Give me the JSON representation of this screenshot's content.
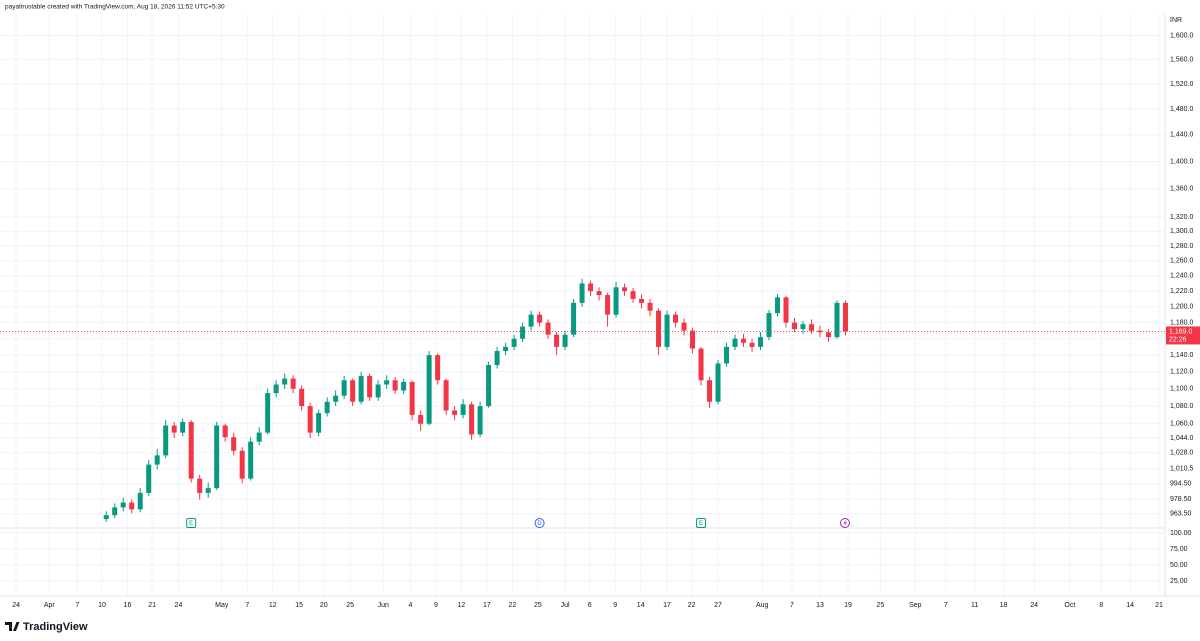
{
  "header": "payaltrustable created with TradingView.com, Aug 18, 2026 11:52 UTC+5:30",
  "logo": "TradingView",
  "chart_data": [
    {
      "type": "candlestick",
      "currency": "INR",
      "log": true,
      "grid": true,
      "up_color": "#089981",
      "down_color": "#f23645",
      "ylim": [
        949,
        1637
      ],
      "xlim": [
        -12.5,
        124.6
      ],
      "yticks": [
        {
          "value": 1600,
          "label": "1,600.0"
        },
        {
          "value": 1560,
          "label": "1,560.0"
        },
        {
          "value": 1520,
          "label": "1,520.0"
        },
        {
          "value": 1480,
          "label": "1,480.0"
        },
        {
          "value": 1440,
          "label": "1,440.0"
        },
        {
          "value": 1400,
          "label": "1,400.0"
        },
        {
          "value": 1360,
          "label": "1,360.0"
        },
        {
          "value": 1320,
          "label": "1,320.0"
        },
        {
          "value": 1300,
          "label": "1,300.0"
        },
        {
          "value": 1280,
          "label": "1,280.0"
        },
        {
          "value": 1260,
          "label": "1,260.0"
        },
        {
          "value": 1240,
          "label": "1,240.0"
        },
        {
          "value": 1220,
          "label": "1,220.0"
        },
        {
          "value": 1200,
          "label": "1,200.0"
        },
        {
          "value": 1180,
          "label": "1,180.0"
        },
        {
          "value": 1160,
          "label": "1,160.0"
        },
        {
          "value": 1140,
          "label": "1,140.0"
        },
        {
          "value": 1120,
          "label": "1,120.0"
        },
        {
          "value": 1100,
          "label": "1,100.0"
        },
        {
          "value": 1080,
          "label": "1,080.0"
        },
        {
          "value": 1060,
          "label": "1,060.0"
        },
        {
          "value": 1044,
          "label": "1,044.0"
        },
        {
          "value": 1028,
          "label": "1,028.0"
        },
        {
          "value": 1010.5,
          "label": "1,010.5"
        },
        {
          "value": 994.5,
          "label": "994.50"
        },
        {
          "value": 978.5,
          "label": "978.50"
        },
        {
          "value": 963.5,
          "label": "963.50"
        }
      ],
      "xticks": [
        {
          "value": -10.6,
          "label": "24"
        },
        {
          "value": -6.7,
          "label": "Apr"
        },
        {
          "value": -3.4,
          "label": "7"
        },
        {
          "value": -0.5,
          "label": "10"
        },
        {
          "value": 2.5,
          "label": "16"
        },
        {
          "value": 5.4,
          "label": "21"
        },
        {
          "value": 8.5,
          "label": "24"
        },
        {
          "value": 13.6,
          "label": "May"
        },
        {
          "value": 16.6,
          "label": "7"
        },
        {
          "value": 19.6,
          "label": "12"
        },
        {
          "value": 22.7,
          "label": "15"
        },
        {
          "value": 25.6,
          "label": "20"
        },
        {
          "value": 28.7,
          "label": "25"
        },
        {
          "value": 32.6,
          "label": "Jun"
        },
        {
          "value": 35.8,
          "label": "4"
        },
        {
          "value": 38.8,
          "label": "9"
        },
        {
          "value": 41.8,
          "label": "12"
        },
        {
          "value": 44.8,
          "label": "17"
        },
        {
          "value": 47.8,
          "label": "22"
        },
        {
          "value": 50.8,
          "label": "25"
        },
        {
          "value": 54,
          "label": "Jul"
        },
        {
          "value": 56.9,
          "label": "6"
        },
        {
          "value": 59.9,
          "label": "9"
        },
        {
          "value": 62.9,
          "label": "14"
        },
        {
          "value": 66,
          "label": "17"
        },
        {
          "value": 68.9,
          "label": "22"
        },
        {
          "value": 72,
          "label": "27"
        },
        {
          "value": 77.2,
          "label": "Aug"
        },
        {
          "value": 80.7,
          "label": "7"
        },
        {
          "value": 84,
          "label": "13"
        },
        {
          "value": 87.3,
          "label": "19"
        },
        {
          "value": 91.1,
          "label": "25"
        },
        {
          "value": 95.2,
          "label": "Sep"
        },
        {
          "value": 98.8,
          "label": "7"
        },
        {
          "value": 102.2,
          "label": "11"
        },
        {
          "value": 105.6,
          "label": "18"
        },
        {
          "value": 109.2,
          "label": "24"
        },
        {
          "value": 113.4,
          "label": "Oct"
        },
        {
          "value": 117.1,
          "label": "8"
        },
        {
          "value": 120.5,
          "label": "14"
        },
        {
          "value": 123.9,
          "label": "21"
        }
      ],
      "last_price": {
        "value": 1169,
        "label": "1,169.0"
      },
      "countdown": "22:26",
      "events": [
        {
          "label": "E",
          "bar": 10
        },
        {
          "label": "D",
          "bar": 51
        },
        {
          "label": "E",
          "bar": 70
        }
      ],
      "ohlc": [
        [
          958,
          966,
          955,
          962
        ],
        [
          962,
          974,
          959,
          970
        ],
        [
          970,
          980,
          966,
          975
        ],
        [
          975,
          978,
          964,
          968
        ],
        [
          968,
          990,
          965,
          985
        ],
        [
          985,
          1020,
          982,
          1015
        ],
        [
          1015,
          1032,
          1010,
          1025
        ],
        [
          1025,
          1064,
          1022,
          1058
        ],
        [
          1058,
          1062,
          1044,
          1050
        ],
        [
          1050,
          1066,
          1046,
          1062
        ],
        [
          1062,
          1064,
          996,
          1000
        ],
        [
          1000,
          1004,
          978,
          985
        ],
        [
          985,
          996,
          980,
          990
        ],
        [
          990,
          1062,
          988,
          1058
        ],
        [
          1058,
          1060,
          1040,
          1045
        ],
        [
          1045,
          1050,
          1025,
          1030
        ],
        [
          1030,
          1034,
          995,
          1000
        ],
        [
          1000,
          1045,
          998,
          1040
        ],
        [
          1040,
          1056,
          1036,
          1050
        ],
        [
          1050,
          1100,
          1048,
          1095
        ],
        [
          1095,
          1110,
          1090,
          1105
        ],
        [
          1105,
          1118,
          1100,
          1112
        ],
        [
          1112,
          1116,
          1095,
          1100
        ],
        [
          1100,
          1104,
          1075,
          1080
        ],
        [
          1080,
          1084,
          1044,
          1050
        ],
        [
          1050,
          1076,
          1046,
          1072
        ],
        [
          1072,
          1090,
          1068,
          1085
        ],
        [
          1085,
          1098,
          1080,
          1092
        ],
        [
          1092,
          1115,
          1088,
          1110
        ],
        [
          1110,
          1112,
          1080,
          1085
        ],
        [
          1085,
          1120,
          1082,
          1115
        ],
        [
          1115,
          1118,
          1086,
          1090
        ],
        [
          1090,
          1110,
          1086,
          1105
        ],
        [
          1105,
          1116,
          1100,
          1110
        ],
        [
          1110,
          1114,
          1094,
          1098
        ],
        [
          1098,
          1112,
          1094,
          1108
        ],
        [
          1108,
          1110,
          1064,
          1070
        ],
        [
          1070,
          1075,
          1052,
          1060
        ],
        [
          1060,
          1145,
          1058,
          1140
        ],
        [
          1140,
          1142,
          1105,
          1110
        ],
        [
          1110,
          1112,
          1070,
          1075
        ],
        [
          1075,
          1080,
          1064,
          1070
        ],
        [
          1070,
          1088,
          1066,
          1082
        ],
        [
          1082,
          1085,
          1042,
          1048
        ],
        [
          1048,
          1085,
          1045,
          1080
        ],
        [
          1080,
          1132,
          1078,
          1128
        ],
        [
          1128,
          1150,
          1124,
          1145
        ],
        [
          1145,
          1155,
          1140,
          1150
        ],
        [
          1150,
          1165,
          1146,
          1160
        ],
        [
          1160,
          1180,
          1156,
          1175
        ],
        [
          1175,
          1195,
          1170,
          1190
        ],
        [
          1190,
          1194,
          1175,
          1180
        ],
        [
          1180,
          1184,
          1160,
          1165
        ],
        [
          1165,
          1168,
          1140,
          1150
        ],
        [
          1150,
          1170,
          1146,
          1165
        ],
        [
          1165,
          1210,
          1162,
          1205
        ],
        [
          1205,
          1236,
          1200,
          1230
        ],
        [
          1230,
          1234,
          1214,
          1220
        ],
        [
          1220,
          1225,
          1208,
          1215
        ],
        [
          1215,
          1218,
          1175,
          1190
        ],
        [
          1190,
          1232,
          1186,
          1225
        ],
        [
          1225,
          1230,
          1214,
          1220
        ],
        [
          1220,
          1224,
          1205,
          1210
        ],
        [
          1210,
          1216,
          1198,
          1205
        ],
        [
          1205,
          1210,
          1188,
          1195
        ],
        [
          1195,
          1198,
          1140,
          1150
        ],
        [
          1150,
          1195,
          1146,
          1190
        ],
        [
          1190,
          1194,
          1174,
          1180
        ],
        [
          1180,
          1185,
          1164,
          1170
        ],
        [
          1170,
          1174,
          1142,
          1148
        ],
        [
          1148,
          1150,
          1104,
          1110
        ],
        [
          1110,
          1114,
          1078,
          1085
        ],
        [
          1085,
          1134,
          1082,
          1130
        ],
        [
          1130,
          1155,
          1126,
          1150
        ],
        [
          1150,
          1165,
          1146,
          1160
        ],
        [
          1160,
          1166,
          1150,
          1155
        ],
        [
          1155,
          1160,
          1144,
          1150
        ],
        [
          1150,
          1168,
          1146,
          1162
        ],
        [
          1162,
          1196,
          1158,
          1192
        ],
        [
          1192,
          1216,
          1188,
          1212
        ],
        [
          1212,
          1214,
          1174,
          1180
        ],
        [
          1180,
          1186,
          1168,
          1172
        ],
        [
          1172,
          1182,
          1166,
          1178
        ],
        [
          1178,
          1184,
          1166,
          1170
        ],
        [
          1170,
          1176,
          1162,
          1168
        ],
        [
          1168,
          1172,
          1156,
          1162
        ],
        [
          1162,
          1208,
          1160,
          1205
        ],
        [
          1205,
          1208,
          1164,
          1169
        ]
      ]
    },
    {
      "type": "indicator",
      "ylim": [
        1.6,
        107.8
      ],
      "yticks": [
        {
          "value": 100,
          "label": "100.00"
        },
        {
          "value": 75,
          "label": "75.00"
        },
        {
          "value": 50,
          "label": "50.00"
        },
        {
          "value": 25,
          "label": "25.00"
        }
      ]
    }
  ]
}
